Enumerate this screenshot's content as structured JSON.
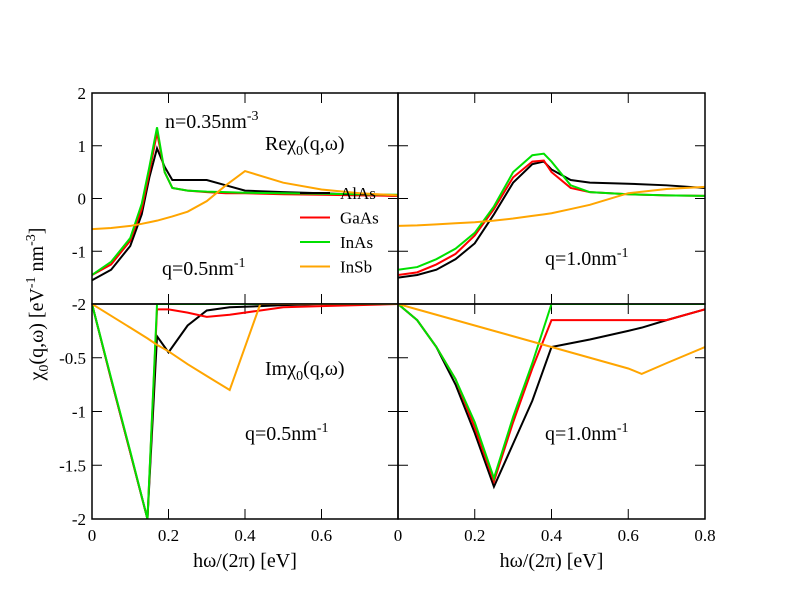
{
  "chart_data": [
    {
      "type": "line",
      "xlim": [
        0,
        0.8
      ],
      "ylim": [
        -2,
        2
      ],
      "xticks": [
        0,
        0.2,
        0.4,
        0.6,
        0.8
      ],
      "yticks": [
        -2,
        -1,
        0,
        1,
        2
      ],
      "show_xtick_labels": false,
      "show_ytick_labels": true,
      "legend": "lower right",
      "ylabel": [
        {
          "t": "χ"
        },
        {
          "t": "0",
          "shift": "sub"
        },
        {
          "t": "(q,ω) [eV"
        },
        {
          "t": "-1",
          "shift": "super"
        },
        {
          "t": " nm"
        },
        {
          "t": "-3",
          "shift": "super"
        },
        {
          "t": "]"
        }
      ],
      "annotations": [
        [
          {
            "t": "n=0.35nm"
          },
          {
            "t": "-3",
            "shift": "super"
          }
        ],
        [
          {
            "t": "Reχ"
          },
          {
            "t": "0",
            "shift": "sub"
          },
          {
            "t": "(q,ω)"
          }
        ],
        [
          {
            "t": "q=0.5nm"
          },
          {
            "t": "-1",
            "shift": "super"
          }
        ]
      ],
      "x": [
        0,
        0.05,
        0.1,
        0.13,
        0.15,
        0.17,
        0.19,
        0.21,
        0.25,
        0.3,
        0.35,
        0.4,
        0.5,
        0.6,
        0.7,
        0.8
      ],
      "series": [
        {
          "name": "AlAs",
          "color": "#000000",
          "values": [
            -1.55,
            -1.35,
            -0.9,
            -0.3,
            0.4,
            0.95,
            0.6,
            0.35,
            0.35,
            0.35,
            0.25,
            0.15,
            0.12,
            0.1,
            0.07,
            0.05
          ]
        },
        {
          "name": "GaAs",
          "color": "#ff0000",
          "values": [
            -1.45,
            -1.25,
            -0.8,
            -0.2,
            0.5,
            1.25,
            0.5,
            0.2,
            0.15,
            0.12,
            0.1,
            0.1,
            0.08,
            0.07,
            0.06,
            0.05
          ]
        },
        {
          "name": "InAs",
          "color": "#00e000",
          "values": [
            -1.45,
            -1.2,
            -0.75,
            -0.1,
            0.6,
            1.35,
            0.5,
            0.2,
            0.15,
            0.13,
            0.12,
            0.11,
            0.1,
            0.09,
            0.08,
            0.07
          ]
        },
        {
          "name": "InSb",
          "color": "#ffa500",
          "values": [
            -0.58,
            -0.56,
            -0.52,
            -0.48,
            -0.45,
            -0.42,
            -0.38,
            -0.34,
            -0.25,
            -0.05,
            0.25,
            0.52,
            0.3,
            0.17,
            0.1,
            0.06
          ]
        }
      ]
    },
    {
      "type": "line",
      "xlim": [
        0,
        0.8
      ],
      "ylim": [
        -2,
        2
      ],
      "xticks": [
        0,
        0.2,
        0.4,
        0.6,
        0.8
      ],
      "yticks": [
        -2,
        -1,
        0,
        1,
        2
      ],
      "show_xtick_labels": false,
      "show_ytick_labels": false,
      "annotations": [
        [
          {
            "t": "q=1.0nm"
          },
          {
            "t": "-1",
            "shift": "super"
          }
        ]
      ],
      "x": [
        0,
        0.05,
        0.1,
        0.15,
        0.2,
        0.25,
        0.3,
        0.35,
        0.38,
        0.4,
        0.45,
        0.5,
        0.6,
        0.7,
        0.8
      ],
      "series": [
        {
          "color": "#000000",
          "values": [
            -1.5,
            -1.45,
            -1.35,
            -1.15,
            -0.85,
            -0.3,
            0.3,
            0.65,
            0.7,
            0.55,
            0.35,
            0.3,
            0.28,
            0.25,
            0.2
          ]
        },
        {
          "color": "#ff0000",
          "values": [
            -1.45,
            -1.4,
            -1.25,
            -1.05,
            -0.7,
            -0.2,
            0.4,
            0.7,
            0.72,
            0.5,
            0.2,
            0.12,
            0.08,
            0.06,
            0.05
          ]
        },
        {
          "color": "#00e000",
          "values": [
            -1.35,
            -1.3,
            -1.15,
            -0.95,
            -0.65,
            -0.15,
            0.5,
            0.82,
            0.85,
            0.7,
            0.25,
            0.12,
            0.08,
            0.06,
            0.05
          ]
        },
        {
          "color": "#ffa500",
          "values": [
            -0.52,
            -0.51,
            -0.49,
            -0.47,
            -0.45,
            -0.42,
            -0.38,
            -0.33,
            -0.3,
            -0.28,
            -0.2,
            -0.12,
            0.1,
            0.18,
            0.22
          ]
        }
      ]
    },
    {
      "type": "line",
      "xlim": [
        0,
        0.8
      ],
      "ylim": [
        -2,
        0
      ],
      "xticks": [
        0,
        0.2,
        0.4,
        0.6
      ],
      "yticks": [
        -2,
        -1.5,
        -1,
        -0.5
      ],
      "show_xtick_labels": true,
      "show_ytick_labels": true,
      "xlabel": "hω/(2π) [eV]",
      "annotations": [
        [
          {
            "t": "Imχ"
          },
          {
            "t": "0",
            "shift": "sub"
          },
          {
            "t": "(q,ω)"
          }
        ],
        [
          {
            "t": "q=0.5nm"
          },
          {
            "t": "-1",
            "shift": "super"
          }
        ]
      ],
      "x": [
        0,
        0.05,
        0.1,
        0.145,
        0.17,
        0.2,
        0.25,
        0.3,
        0.36,
        0.44,
        0.5,
        0.6,
        0.8
      ],
      "series": [
        {
          "color": "#000000",
          "values": [
            0,
            -0.7,
            -1.38,
            -2,
            -0.3,
            -0.45,
            -0.2,
            -0.06,
            -0.03,
            -0.02,
            -0.01,
            0,
            0
          ]
        },
        {
          "color": "#ff0000",
          "values": [
            0,
            -0.7,
            -1.38,
            -2,
            -0.05,
            -0.05,
            -0.08,
            -0.12,
            -0.1,
            -0.06,
            -0.03,
            -0.02,
            0
          ]
        },
        {
          "color": "#00e000",
          "values": [
            0,
            -0.69,
            -1.37,
            -2,
            0,
            0,
            0,
            0,
            0,
            0,
            0,
            0,
            0
          ]
        },
        {
          "color": "#ffa500",
          "values": [
            0,
            -0.11,
            -0.22,
            -0.32,
            -0.38,
            -0.44,
            -0.56,
            -0.67,
            -0.8,
            0,
            0,
            0,
            0
          ]
        }
      ]
    },
    {
      "type": "line",
      "xlim": [
        0,
        0.8
      ],
      "ylim": [
        -2,
        0
      ],
      "xticks": [
        0,
        0.2,
        0.4,
        0.6,
        0.8
      ],
      "yticks": [
        -2,
        -1.5,
        -1,
        -0.5
      ],
      "show_xtick_labels": true,
      "show_ytick_labels": false,
      "xlabel": "hω/(2π) [eV]",
      "annotations": [
        [
          {
            "t": "q=1.0nm"
          },
          {
            "t": "-1",
            "shift": "super"
          }
        ]
      ],
      "x": [
        0,
        0.05,
        0.1,
        0.15,
        0.2,
        0.25,
        0.3,
        0.35,
        0.4,
        0.5,
        0.6,
        0.635,
        0.7,
        0.8
      ],
      "series": [
        {
          "color": "#000000",
          "values": [
            0,
            -0.15,
            -0.4,
            -0.75,
            -1.2,
            -1.7,
            -1.3,
            -0.9,
            -0.4,
            -0.33,
            -0.25,
            -0.22,
            -0.15,
            -0.05
          ]
        },
        {
          "color": "#ff0000",
          "values": [
            0,
            -0.15,
            -0.4,
            -0.7,
            -1.15,
            -1.65,
            -1.1,
            -0.6,
            -0.15,
            -0.15,
            -0.15,
            -0.15,
            -0.15,
            -0.05
          ]
        },
        {
          "color": "#00e000",
          "values": [
            0,
            -0.15,
            -0.4,
            -0.7,
            -1.1,
            -1.62,
            -1.05,
            -0.55,
            0,
            0,
            0,
            0,
            0,
            0
          ]
        },
        {
          "color": "#ffa500",
          "values": [
            0,
            -0.05,
            -0.1,
            -0.15,
            -0.2,
            -0.25,
            -0.3,
            -0.35,
            -0.4,
            -0.5,
            -0.6,
            -0.65,
            -0.55,
            -0.4
          ]
        }
      ]
    }
  ]
}
